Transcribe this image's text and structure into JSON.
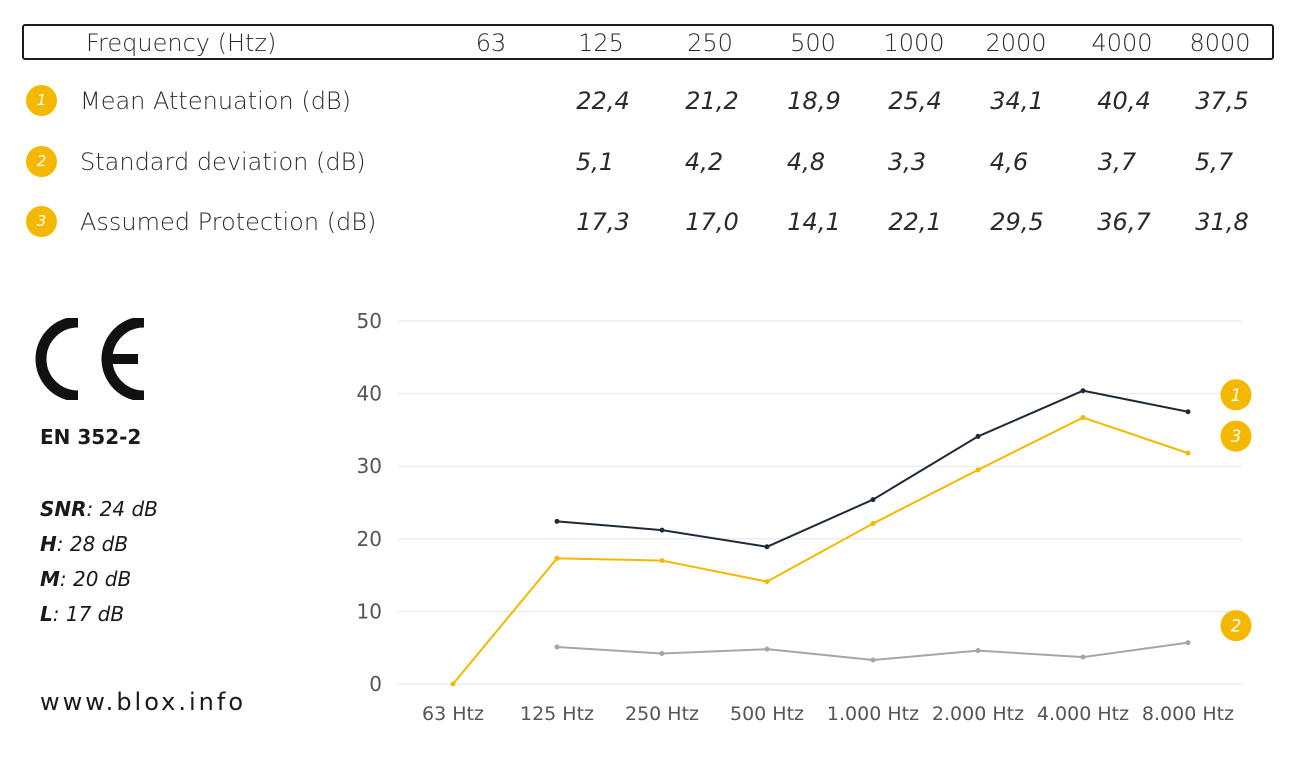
{
  "table": {
    "header_label": "Frequency (Htz)",
    "frequencies": [
      "63",
      "125",
      "250",
      "500",
      "1000",
      "2000",
      "4000",
      "8000"
    ],
    "rows": [
      {
        "badge": "1",
        "label": "Mean Attenuation (dB)",
        "values": [
          "22,4",
          "21,2",
          "18,9",
          "25,4",
          "34,1",
          "40,4",
          "37,5"
        ]
      },
      {
        "badge": "2",
        "label": "Standard deviation (dB)",
        "values": [
          "5,1",
          "4,2",
          "4,8",
          "3,3",
          "4,6",
          "3,7",
          "5,7"
        ]
      },
      {
        "badge": "3",
        "label": "Assumed Protection (dB)",
        "values": [
          "17,3",
          "17,0",
          "14,1",
          "22,1",
          "29,5",
          "36,7",
          "31,8"
        ]
      }
    ]
  },
  "certification": {
    "logo_icon": "ce-mark-icon",
    "standard": "EN 352-2",
    "ratings": [
      {
        "name": "SNR",
        "value": ": 24 dB"
      },
      {
        "name": "H",
        "value": ": 28 dB"
      },
      {
        "name": "M",
        "value": ": 20 dB"
      },
      {
        "name": "L",
        "value": ": 17 dB"
      }
    ]
  },
  "website": "www.blox.info",
  "colors": {
    "accent": "#f5b800",
    "mean": "#1f2a38",
    "std": "#a6a6a6",
    "grid": "#e6e6e6"
  },
  "chart_data": {
    "type": "line",
    "categories": [
      "63 Htz",
      "125 Htz",
      "250 Htz",
      "500 Htz",
      "1.000 Htz",
      "2.000 Htz",
      "4.000 Htz",
      "8.000 Htz"
    ],
    "ylim": [
      0,
      50
    ],
    "yticks": [
      "0",
      "10",
      "20",
      "30",
      "40",
      "50"
    ],
    "grid": true,
    "series": [
      {
        "name": "1",
        "color": "#1f2a38",
        "values": [
          null,
          22.4,
          21.2,
          18.9,
          25.4,
          34.1,
          40.4,
          37.5
        ]
      },
      {
        "name": "2",
        "color": "#a6a6a6",
        "values": [
          null,
          5.1,
          4.2,
          4.8,
          3.3,
          4.6,
          3.7,
          5.7
        ]
      },
      {
        "name": "3",
        "color": "#f5b800",
        "values": [
          0,
          17.3,
          17.0,
          14.1,
          22.1,
          29.5,
          36.7,
          31.8
        ]
      }
    ]
  }
}
